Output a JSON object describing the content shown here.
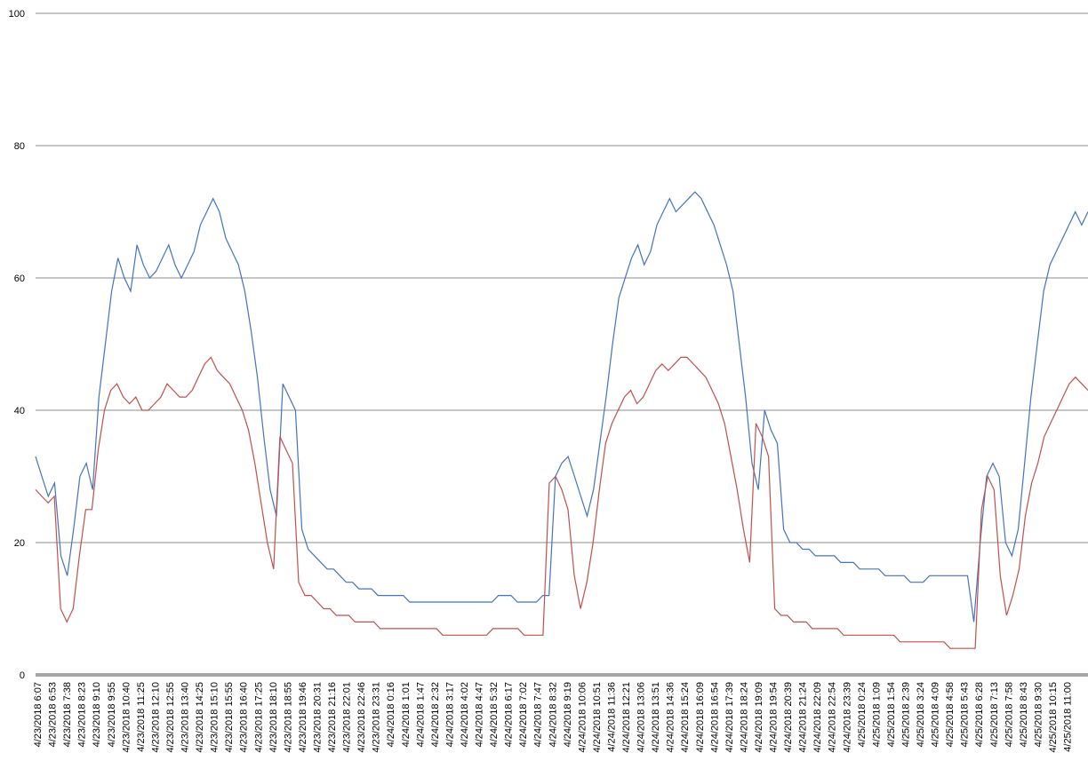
{
  "chart_data": {
    "type": "line",
    "title": "",
    "xlabel": "",
    "ylabel": "",
    "ylim": [
      0,
      100
    ],
    "yticks": [
      0,
      20,
      40,
      60,
      80,
      100
    ],
    "grid": "horizontal",
    "legend": "none",
    "x_tick_labels": [
      "4/23/2018 6:07",
      "4/23/2018 6:53",
      "4/23/2018 7:38",
      "4/23/2018 8:23",
      "4/23/2018 9:10",
      "4/23/2018 9:55",
      "4/23/2018 10:40",
      "4/23/2018 11:25",
      "4/23/2018 12:10",
      "4/23/2018 12:55",
      "4/23/2018 13:40",
      "4/23/2018 14:25",
      "4/23/2018 15:10",
      "4/23/2018 15:55",
      "4/23/2018 16:40",
      "4/23/2018 17:25",
      "4/23/2018 18:10",
      "4/23/2018 18:55",
      "4/23/2018 19:46",
      "4/23/2018 20:31",
      "4/23/2018 21:16",
      "4/23/2018 22:01",
      "4/23/2018 22:46",
      "4/23/2018 23:31",
      "4/24/2018 0:16",
      "4/24/2018 1:01",
      "4/24/2018 1:47",
      "4/24/2018 2:32",
      "4/24/2018 3:17",
      "4/24/2018 4:02",
      "4/24/2018 4:47",
      "4/24/2018 5:32",
      "4/24/2018 6:17",
      "4/24/2018 7:02",
      "4/24/2018 7:47",
      "4/24/2018 8:32",
      "4/24/2018 9:19",
      "4/24/2018 10:06",
      "4/24/2018 10:51",
      "4/24/2018 11:36",
      "4/24/2018 12:21",
      "4/24/2018 13:06",
      "4/24/2018 13:51",
      "4/24/2018 14:36",
      "4/24/2018 15:24",
      "4/24/2018 16:09",
      "4/24/2018 16:54",
      "4/24/2018 17:39",
      "4/24/2018 18:24",
      "4/24/2018 19:09",
      "4/24/2018 19:54",
      "4/24/2018 20:39",
      "4/24/2018 21:24",
      "4/24/2018 22:09",
      "4/24/2018 22:54",
      "4/24/2018 23:39",
      "4/25/2018 0:24",
      "4/25/2018 1:09",
      "4/25/2018 1:54",
      "4/25/2018 2:39",
      "4/25/2018 3:24",
      "4/25/2018 4:09",
      "4/25/2018 4:58",
      "4/25/2018 5:43",
      "4/25/2018 6:28",
      "4/25/2018 7:13",
      "4/25/2018 7:58",
      "4/25/2018 8:43",
      "4/25/2018 9:30",
      "4/25/2018 10:15",
      "4/25/2018 11:00"
    ],
    "series": [
      {
        "color": "#4472C4",
        "values": [
          33,
          30,
          27,
          29,
          18,
          15,
          22,
          30,
          32,
          28,
          42,
          50,
          58,
          63,
          60,
          58,
          65,
          62,
          60,
          61,
          63,
          65,
          62,
          60,
          62,
          64,
          68,
          70,
          72,
          70,
          66,
          64,
          62,
          58,
          52,
          45,
          36,
          28,
          24,
          44,
          42,
          40,
          22,
          19,
          18,
          17,
          16,
          16,
          15,
          14,
          14,
          13,
          13,
          13,
          12,
          12,
          12,
          12,
          12,
          11,
          11,
          11,
          11,
          11,
          11,
          11,
          11,
          11,
          11,
          11,
          11,
          11,
          11,
          12,
          12,
          12,
          11,
          11,
          11,
          11,
          12,
          12,
          30,
          32,
          33,
          30,
          27,
          24,
          28,
          35,
          42,
          50,
          57,
          60,
          63,
          65,
          62,
          64,
          68,
          70,
          72,
          70,
          71,
          72,
          73,
          72,
          70,
          68,
          65,
          62,
          58,
          50,
          42,
          32,
          28,
          40,
          37,
          35,
          22,
          20,
          20,
          19,
          19,
          18,
          18,
          18,
          18,
          17,
          17,
          17,
          16,
          16,
          16,
          16,
          15,
          15,
          15,
          15,
          14,
          14,
          14,
          15,
          15,
          15,
          15,
          15,
          15,
          15,
          8,
          20,
          30,
          32,
          30,
          20,
          18,
          22,
          32,
          42,
          50,
          58,
          62,
          64,
          66,
          68,
          70,
          68,
          70
        ]
      },
      {
        "color": "#C0504D",
        "values": [
          28,
          27,
          26,
          27,
          10,
          8,
          10,
          18,
          25,
          25,
          34,
          40,
          43,
          44,
          42,
          41,
          42,
          40,
          40,
          41,
          42,
          44,
          43,
          42,
          42,
          43,
          45,
          47,
          48,
          46,
          45,
          44,
          42,
          40,
          37,
          32,
          26,
          20,
          16,
          36,
          34,
          32,
          14,
          12,
          12,
          11,
          10,
          10,
          9,
          9,
          9,
          8,
          8,
          8,
          8,
          7,
          7,
          7,
          7,
          7,
          7,
          7,
          7,
          7,
          7,
          6,
          6,
          6,
          6,
          6,
          6,
          6,
          6,
          7,
          7,
          7,
          7,
          7,
          6,
          6,
          6,
          6,
          29,
          30,
          28,
          25,
          15,
          10,
          14,
          20,
          28,
          35,
          38,
          40,
          42,
          43,
          41,
          42,
          44,
          46,
          47,
          46,
          47,
          48,
          48,
          47,
          46,
          45,
          43,
          41,
          38,
          33,
          28,
          22,
          17,
          38,
          36,
          33,
          10,
          9,
          9,
          8,
          8,
          8,
          7,
          7,
          7,
          7,
          7,
          6,
          6,
          6,
          6,
          6,
          6,
          6,
          6,
          6,
          5,
          5,
          5,
          5,
          5,
          5,
          5,
          5,
          4,
          4,
          4,
          4,
          4,
          25,
          30,
          28,
          15,
          9,
          12,
          16,
          24,
          29,
          32,
          36,
          38,
          40,
          42,
          44,
          45,
          44,
          43
        ]
      }
    ]
  }
}
